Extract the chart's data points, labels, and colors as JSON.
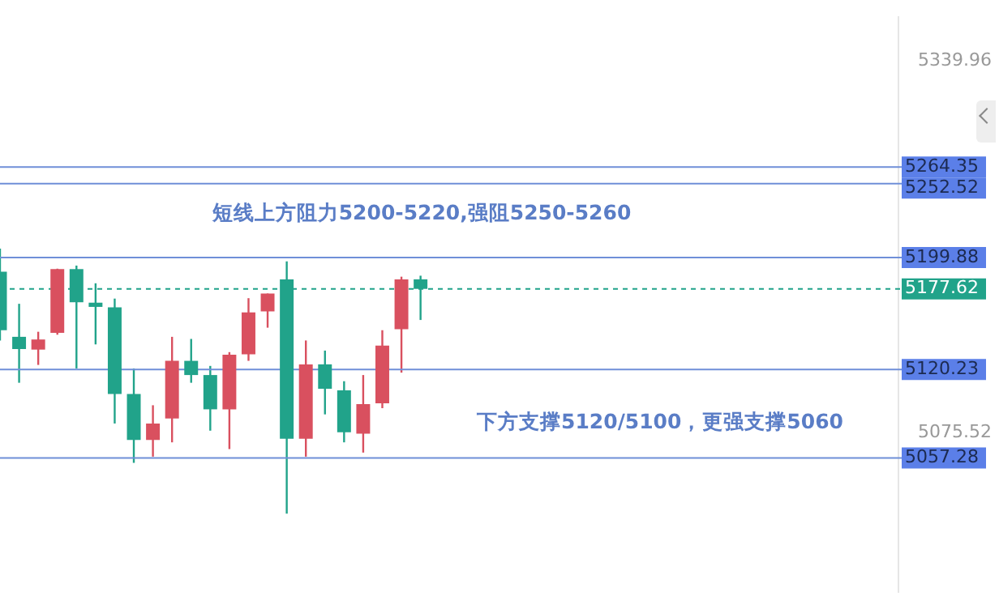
{
  "chart_data": {
    "type": "candlestick",
    "categories": [
      null,
      null,
      null,
      null,
      null,
      null,
      null,
      null,
      null,
      null,
      null,
      null,
      null,
      null,
      null,
      null,
      null,
      null,
      null,
      null,
      null,
      null,
      null,
      null,
      null,
      null,
      null,
      null,
      null,
      null,
      null,
      null,
      null,
      null,
      null,
      null,
      null,
      null,
      null,
      null,
      null,
      null,
      null,
      null,
      null,
      null,
      null,
      null
    ],
    "ohlc": [
      [
        5189.9,
        5206.2,
        5140.9,
        5148.2
      ],
      [
        5143.5,
        5167.0,
        5110.8,
        5134.8
      ],
      [
        5134.4,
        5147.1,
        5123.5,
        5141.6
      ],
      [
        5146.3,
        5192.0,
        5145.0,
        5191.7
      ],
      [
        5191.7,
        5194.2,
        5121.0,
        5168.1
      ],
      [
        5167.8,
        5181.6,
        5138.1,
        5164.8
      ],
      [
        5164.5,
        5170.7,
        5081.8,
        5102.8
      ],
      [
        5102.8,
        5121.0,
        5053.8,
        5070.1
      ],
      [
        5070.1,
        5094.8,
        5058.2,
        5081.8
      ],
      [
        5085.4,
        5143.5,
        5068.4,
        5126.4
      ],
      [
        5126.4,
        5142.0,
        5110.8,
        5116.3
      ],
      [
        5116.3,
        5122.8,
        5076.7,
        5091.9
      ],
      [
        5091.9,
        5132.6,
        5063.6,
        5130.8
      ],
      [
        5131.1,
        5171.0,
        5126.4,
        5160.9
      ],
      [
        5161.6,
        5174.3,
        5150.0,
        5174.3
      ],
      [
        5184.4,
        5197.2,
        5017.6,
        5070.9
      ],
      [
        5070.9,
        5140.9,
        5058.2,
        5123.9
      ],
      [
        5123.9,
        5133.7,
        5088.3,
        5106.5
      ],
      [
        5105.4,
        5111.9,
        5068.4,
        5075.6
      ],
      [
        5074.5,
        5116.3,
        5061.1,
        5095.6
      ],
      [
        5096.2,
        5148.2,
        5092.7,
        5137.3
      ],
      [
        5148.9,
        5186.3,
        5118.0,
        5184.4
      ],
      [
        5184.4,
        5187.0,
        5155.5,
        5177.62
      ],
      null,
      null,
      null,
      null,
      null,
      null,
      null,
      null,
      null,
      null,
      null,
      null,
      null,
      null,
      null,
      null,
      null,
      null,
      null,
      null,
      null,
      null,
      null,
      null,
      null
    ],
    "colors": [
      "#21a38a",
      "#21a38a",
      "#d9505f",
      "#d9505f",
      "#21a38a",
      "#21a38a",
      "#21a38a",
      "#21a38a",
      "#d9505f",
      "#d9505f",
      "#21a38a",
      "#21a38a",
      "#d9505f",
      "#d9505f",
      "#d9505f",
      "#21a38a",
      "#d9505f",
      "#21a38a",
      "#21a38a",
      "#d9505f",
      "#d9505f",
      "#d9505f",
      "#21a38a",
      null,
      null,
      null,
      null,
      null,
      null,
      null,
      null,
      null,
      null,
      null,
      null,
      null,
      null,
      null,
      null,
      null,
      null,
      null,
      null,
      null,
      null,
      null,
      null,
      null
    ],
    "ylim": [
      4962,
      5371
    ],
    "yticks": [
      {
        "value": 5339.96,
        "label": "5339.96"
      },
      {
        "value": 5075.52,
        "label": "5075.52"
      }
    ],
    "ref_lines": [
      {
        "axis": "y",
        "value": 5264.35,
        "label": "5264.35",
        "color": "#6f8fd8"
      },
      {
        "axis": "y",
        "value": 5252.52,
        "label": "5252.52",
        "color": "#6f8fd8"
      },
      {
        "axis": "y",
        "value": 5199.88,
        "label": "5199.88",
        "color": "#6f8fd8"
      },
      {
        "axis": "y",
        "value": 5177.62,
        "label": "5177.62",
        "color": "#21a38a",
        "line_style": "dashed"
      },
      {
        "axis": "y",
        "value": 5120.23,
        "label": "5120.23",
        "color": "#6f8fd8"
      },
      {
        "axis": "y",
        "value": 5057.28,
        "label": "5057.28",
        "color": "#6f8fd8"
      }
    ],
    "annotations": [
      "短线上方阻力5200-5220,强阻5250-5260",
      "下方支撑5120/5100，更强支撑5060"
    ],
    "tick_labels": "y",
    "grid": false,
    "legend": false
  }
}
